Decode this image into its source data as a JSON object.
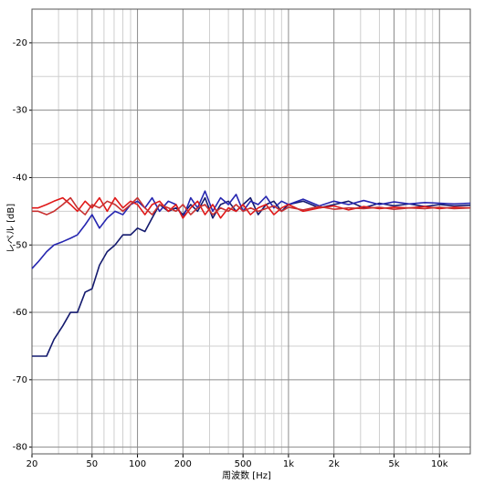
{
  "chart_data": {
    "type": "line",
    "xlabel": "周波数 [Hz]",
    "ylabel": "レベル [dB]",
    "xscale": "log",
    "grid": true,
    "xlim": [
      20,
      16000
    ],
    "ylim": [
      -81,
      -15
    ],
    "xticks": [
      20,
      50,
      100,
      200,
      500,
      {
        "value": 1000,
        "label": "1k"
      },
      {
        "value": 2000,
        "label": "2k"
      },
      {
        "value": 5000,
        "label": "5k"
      },
      {
        "value": 10000,
        "label": "10k"
      }
    ],
    "yticks": [
      -20,
      -30,
      -40,
      -50,
      -60,
      -70,
      -80
    ],
    "xminor": [
      30,
      40,
      60,
      70,
      80,
      90,
      300,
      400,
      600,
      700,
      800,
      900,
      3000,
      4000,
      6000,
      7000,
      8000,
      9000
    ],
    "yminor": [
      -25,
      -35,
      -45,
      -55,
      -65,
      -75
    ],
    "x": [
      20,
      22,
      25,
      28,
      32,
      36,
      40,
      45,
      50,
      56,
      63,
      71,
      80,
      90,
      100,
      112,
      125,
      140,
      160,
      180,
      200,
      225,
      250,
      280,
      315,
      355,
      400,
      450,
      500,
      560,
      630,
      710,
      800,
      900,
      1000,
      1250,
      1600,
      2000,
      2500,
      3150,
      4000,
      5000,
      6300,
      8000,
      10000,
      12500,
      16000
    ],
    "series": [
      {
        "color": "#141a6e",
        "values": [
          -66.5,
          -66.5,
          -66.5,
          -64,
          -62,
          -60,
          -60,
          -57,
          -56.5,
          -53,
          -51,
          -50,
          -48.5,
          -48.5,
          -47.5,
          -48,
          -46,
          -44,
          -45,
          -44.5,
          -45.5,
          -44,
          -45,
          -43,
          -46,
          -44,
          -43.5,
          -45,
          -44,
          -43,
          -45.5,
          -44,
          -43.5,
          -45,
          -44,
          -43.5,
          -44.5,
          -44,
          -43.5,
          -44.5,
          -43.8,
          -44.2,
          -43.9,
          -44.3,
          -44,
          -44.2,
          -44.1
        ]
      },
      {
        "color": "#2626b0",
        "values": [
          -53.5,
          -52.5,
          -51,
          -50,
          -49.5,
          -49,
          -48.5,
          -47,
          -45.5,
          -47.5,
          -46,
          -45,
          -45.5,
          -44,
          -43.5,
          -44.5,
          -43,
          -45,
          -43.5,
          -44,
          -46,
          -43,
          -44.5,
          -42,
          -45,
          -43,
          -44,
          -42.5,
          -45,
          -43.5,
          -44,
          -42.8,
          -44.5,
          -43.5,
          -44,
          -43.2,
          -44.2,
          -43.5,
          -44,
          -43.4,
          -44,
          -43.6,
          -43.9,
          -43.7,
          -43.8,
          -43.9,
          -43.8
        ]
      },
      {
        "color": "#e01818",
        "values": [
          -44.5,
          -44.5,
          -44,
          -43.5,
          -43,
          -44,
          -45,
          -43.5,
          -44.5,
          -43,
          -45,
          -43,
          -44.5,
          -43.5,
          -44,
          -45.5,
          -44,
          -43.5,
          -45,
          -44,
          -46,
          -44.5,
          -43.5,
          -45.5,
          -44,
          -46,
          -44.5,
          -45,
          -44,
          -45.5,
          -44.5,
          -44,
          -45.5,
          -44.5,
          -44,
          -45,
          -44.5,
          -44.2,
          -44.8,
          -44.3,
          -44.6,
          -44.4,
          -44.5,
          -44.3,
          -44.6,
          -44.4,
          -44.5
        ]
      },
      {
        "color": "#c83030",
        "values": [
          -45,
          -45,
          -45.5,
          -45,
          -44,
          -43,
          -44.5,
          -45.5,
          -44,
          -44.5,
          -43.5,
          -44,
          -45,
          -44,
          -43,
          -44.5,
          -45.5,
          -44,
          -44.5,
          -45,
          -44,
          -45.5,
          -44.5,
          -44,
          -45.5,
          -44.5,
          -45,
          -44,
          -45,
          -44.5,
          -45,
          -44.6,
          -44.2,
          -45,
          -44.4,
          -44.8,
          -44.3,
          -44.7,
          -44.5,
          -44.6,
          -44.4,
          -44.7,
          -44.5,
          -44.6,
          -44.4,
          -44.6,
          -44.5
        ]
      }
    ]
  }
}
